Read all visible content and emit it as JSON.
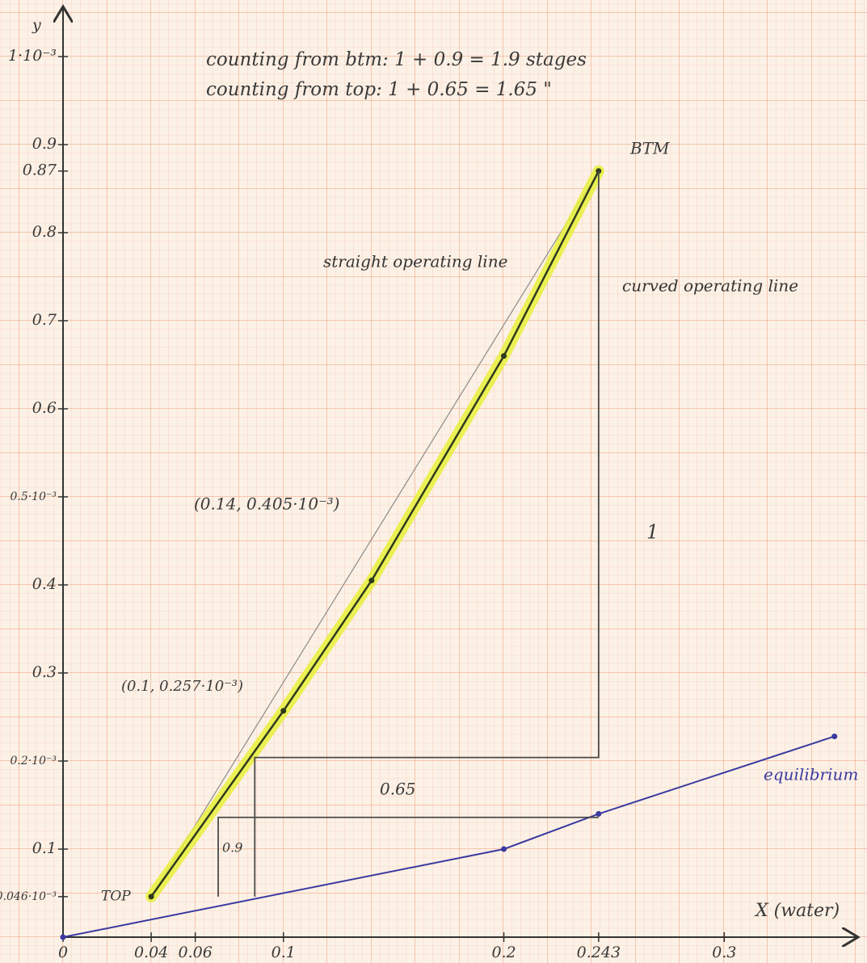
{
  "chart_data": {
    "type": "line",
    "x_label": "X (water)",
    "y_label": "y",
    "xlim": [
      0,
      0.36
    ],
    "ylim": [
      0,
      1.05
    ],
    "xticks": [
      0,
      0.04,
      0.06,
      0.1,
      0.2,
      0.243,
      0.3
    ],
    "yticks": [
      {
        "value": 0.046,
        "label": "0.046·10⁻³"
      },
      0.1,
      {
        "value": 0.2,
        "label": "0.2·10⁻³"
      },
      0.3,
      0.4,
      {
        "value": 0.5,
        "label": "0.5·10⁻³"
      },
      0.6,
      0.7,
      0.8,
      0.87,
      0.9,
      {
        "value": 1,
        "label": "1·10⁻³"
      }
    ],
    "grid": true,
    "series": [
      {
        "name": "straight operating line",
        "color": "#8a8a8a",
        "x": [
          0.04,
          0.243
        ],
        "values": [
          0.046,
          0.87
        ]
      },
      {
        "name": "curved operating line",
        "color": "#2f3a1c",
        "highlight": "#e8f03a",
        "x": [
          0.04,
          0.1,
          0.14,
          0.2,
          0.243
        ],
        "values": [
          0.046,
          0.257,
          0.405,
          0.66,
          0.87
        ]
      },
      {
        "name": "equilibrium",
        "color": "#3a3aa0",
        "x": [
          0,
          0.2,
          0.243,
          0.35
        ],
        "values": [
          0,
          0.1,
          0.14,
          0.228
        ]
      },
      {
        "color": "#4a4a4a",
        "x": [
          0.243,
          0.243,
          0.087,
          0.087
        ],
        "values": [
          0.87,
          0.204,
          0.204,
          0.046
        ]
      },
      {
        "color": "#4a4a4a",
        "x": [
          0.243,
          0.0704,
          0.0704
        ],
        "values": [
          0.136,
          0.136,
          0.046
        ]
      }
    ],
    "annotations": [
      "counting from btm: 1 + 0.9 = 1.9 stages",
      "counting from top: 1 + 0.65 = 1.65  \"",
      "BTM",
      "TOP",
      "(0.14, 0.405·10⁻³)",
      "(0.1, 0.257·10⁻³)",
      "0.65",
      "0.9",
      "1"
    ]
  }
}
